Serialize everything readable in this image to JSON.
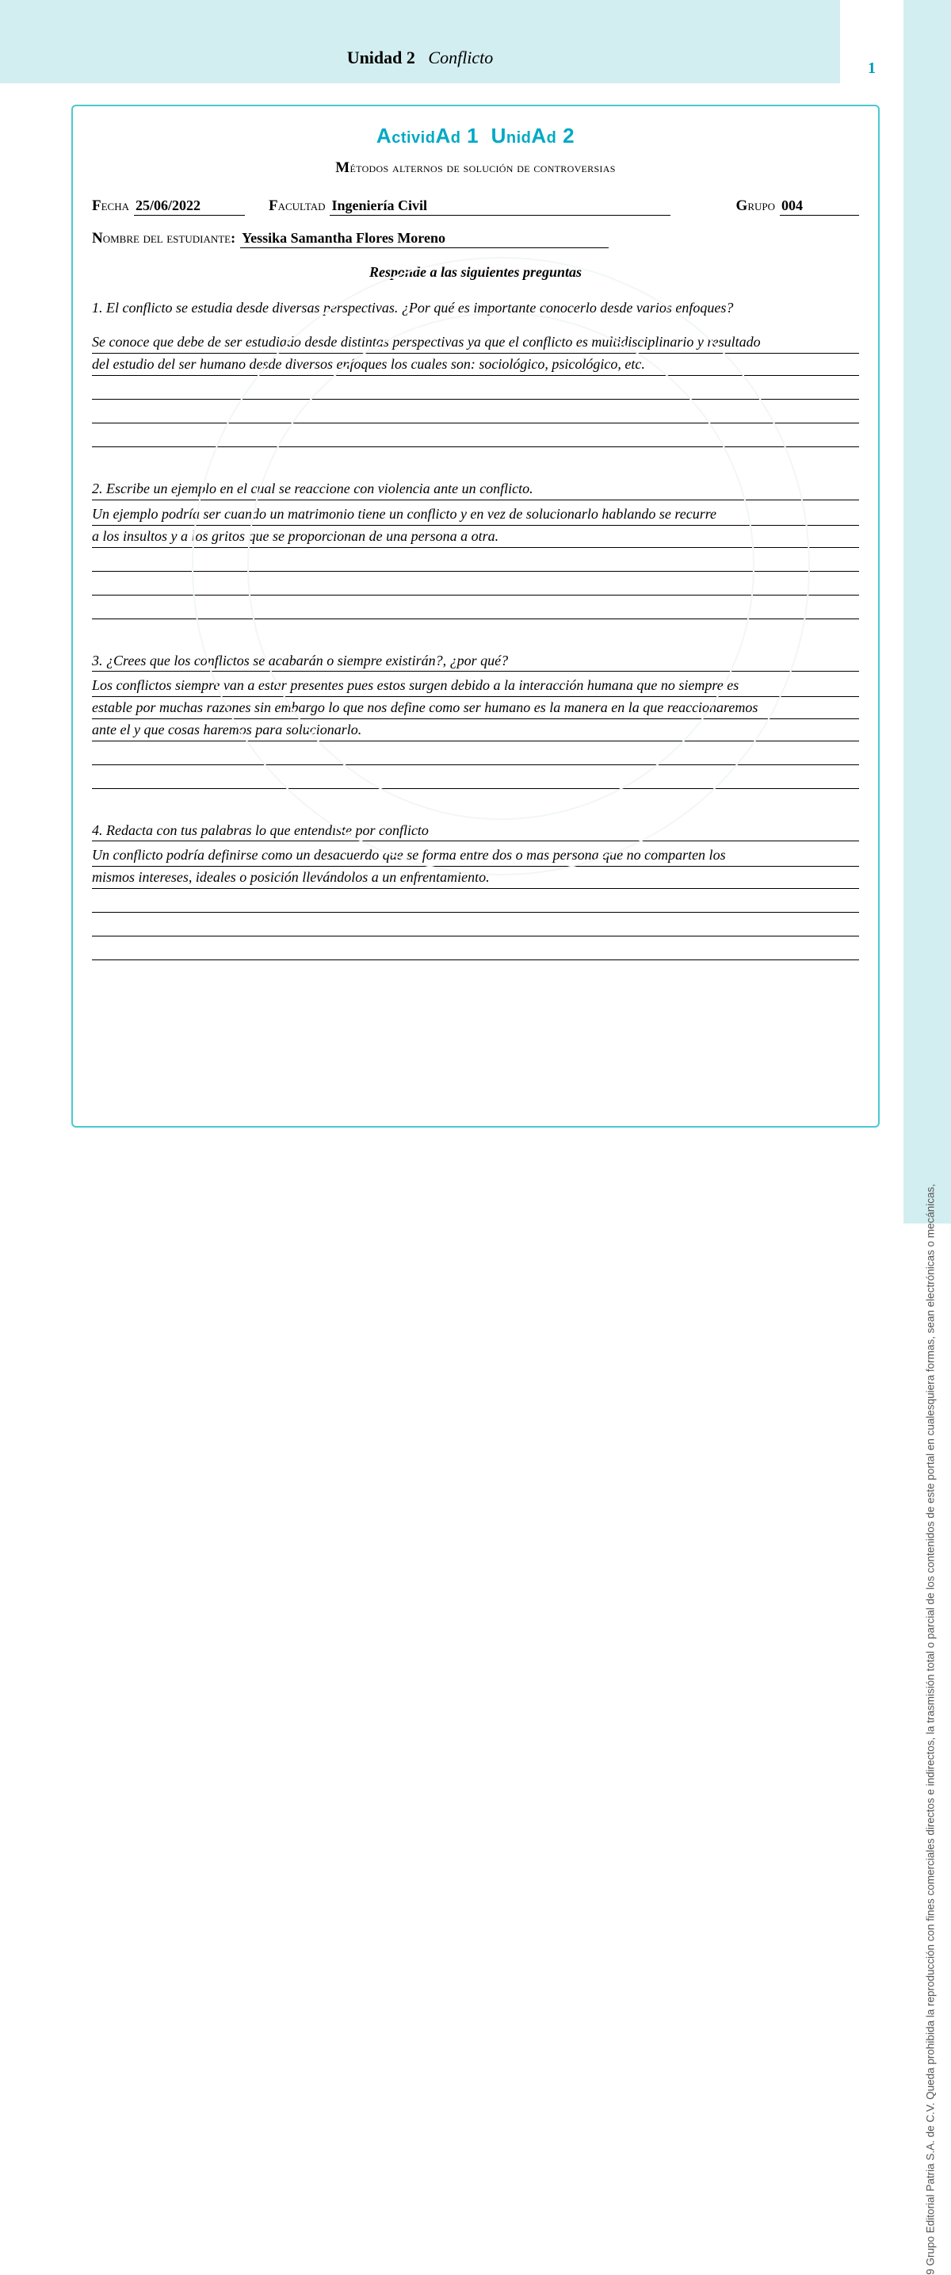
{
  "colors": {
    "band_bg": "#d3eef0",
    "box_border": "#49c9ce",
    "accent": "#00a9c4",
    "page_num": "#0099b8",
    "text": "#000000",
    "watermark": "#f2f6f7",
    "side_text": "#555555"
  },
  "header": {
    "unit_bold": "Unidad 2",
    "unit_italic": "Conflicto",
    "page_number": "1"
  },
  "activity": {
    "title_main": "Actividad 1 Unidad 2",
    "subtitle": "Métodos alternos de solución de controversias"
  },
  "meta": {
    "fecha_label": "Fecha",
    "fecha_value": "25/06/2022",
    "facultad_label": "Facultad",
    "facultad_value": "Ingeniería Civil",
    "grupo_label": "Grupo",
    "grupo_value": "004",
    "nombre_label": "Nombre del estudiante:",
    "nombre_value": "Yessika Samantha Flores Moreno"
  },
  "instruction": "Responde a las siguientes preguntas",
  "questions": [
    {
      "q": "1.  El conflicto se estudia desde diversas perspectivas. ¿Por qué es importante conocerlo desde varios enfoques?",
      "a1": "Se conoce que debe de ser estudiado desde distintas perspectivas ya que el conflicto es multidisciplinario y resultado",
      "a2": "del estudio del ser humano desde diversos enfoques los cuales son: sociológico, psicológico, etc.",
      "blank_lines": 3,
      "tight": false
    },
    {
      "q": "2.  Escribe un ejemplo en el cual se reaccione con violencia ante un conflicto.",
      "a1": "Un ejemplo podría ser cuando un matrimonio tiene un conflicto y en vez de solucionarlo hablando se recurre",
      "a2": "a los insultos y a los gritos que se proporcionan de una persona a otra.",
      "blank_lines": 3,
      "tight": true
    },
    {
      "q": "3.  ¿Crees que los conflictos se acabarán o siempre existirán?, ¿por qué?",
      "a1": "Los conflictos siempre van a estar presentes pues estos surgen debido a la interacción humana que no siempre es",
      "a2": "estable por muchas razones sin embargo lo que nos define como ser humano es la manera en la que reaccionaremos",
      "a3": "ante el y que cosas haremos para solucionarlo.",
      "blank_lines": 2,
      "tight": true
    },
    {
      "q": "4.  Redacta con tus palabras lo que entendiste por conflicto",
      "a1": " Un conflicto podría definirse como un desacuerdo que se forma entre dos o mas persona que no comparten los",
      "a2": "mismos intereses, ideales o posición llevándolos a un enfrentamiento.",
      "blank_lines": 3,
      "tight": true
    }
  ],
  "side_copyright": "9 Grupo Editorial Patria S.A. de C.V. Queda prohibida la reproducción con fines comerciales directos e indirectos, la trasmisión total o parcial de los contenidos de este portal en cualesquiera formas, sean electrónicas o mecánicas,"
}
